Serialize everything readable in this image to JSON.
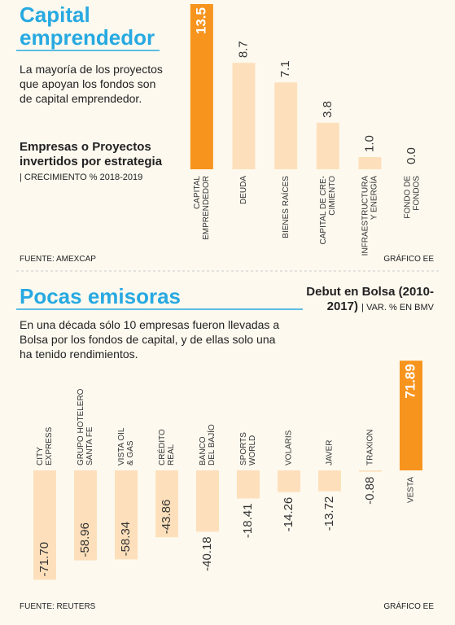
{
  "chart_data": [
    {
      "type": "bar",
      "heading": "Capital emprendedor",
      "description": "La mayoría de los proyectos que apoyan los fondos son de capital emprendedor.",
      "title": "Empresas o Proyectos invertidos por estrategia",
      "title_note": "| CRECIMIENTO % 2018-2019",
      "categories": [
        [
          "CAPITAL",
          "EMPRENDEDOR"
        ],
        [
          "DEUDA"
        ],
        [
          "BIENES RAÍCES"
        ],
        [
          "CAPITAL DE CRE-",
          "CIMIENTO"
        ],
        [
          "INFRAESTRUCTURA",
          "Y ENERGÍA"
        ],
        [
          "FONDO DE",
          "FONDOS"
        ]
      ],
      "values": [
        13.5,
        8.7,
        7.1,
        3.8,
        1.0,
        0.0
      ],
      "value_labels": [
        "13.5",
        "8.7",
        "7.1",
        "3.8",
        "1.0",
        "0.0"
      ],
      "colors": [
        "#f7941d",
        "#fde0bb",
        "#fde0bb",
        "#fde0bb",
        "#fde0bb",
        "#fde0bb"
      ],
      "ylim": [
        0,
        13.5
      ],
      "source": "FUENTE: AMEXCAP",
      "credit": "GRÁFICO EE"
    },
    {
      "type": "bar",
      "heading": "Pocas emisoras",
      "description": "En una década sólo 10 empresas fueron llevadas a Bolsa por los fondos de capital, y de ellas solo una ha tenido rendimientos.",
      "title": "Debut en Bolsa (2010-2017)",
      "title_note": "| VAR. % EN BMV",
      "categories": [
        [
          "CITY",
          "EXPRESS"
        ],
        [
          "GRUPO HOTELERO",
          "SANTA FE"
        ],
        [
          "VISTA OIL",
          "& GAS"
        ],
        [
          "CRÉDITO",
          "REAL"
        ],
        [
          "BANCO",
          "DEL BAJÍO"
        ],
        [
          "SPORTS",
          "WORLD"
        ],
        [
          "VOLARIS"
        ],
        [
          "JAVER"
        ],
        [
          "TRAXION"
        ],
        [
          "VESTA"
        ]
      ],
      "values": [
        -71.7,
        -58.96,
        -58.34,
        -43.86,
        -40.18,
        -18.41,
        -14.26,
        -13.72,
        -0.88,
        71.89
      ],
      "value_labels": [
        "-71.70",
        "-58.96",
        "-58.34",
        "-43.86",
        "-40.18",
        "-18.41",
        "-14.26",
        "-13.72",
        "-0.88",
        "71.89"
      ],
      "colors": [
        "#fde0bb",
        "#fde0bb",
        "#fde0bb",
        "#fde0bb",
        "#fde0bb",
        "#fde0bb",
        "#fde0bb",
        "#fde0bb",
        "#fde0bb",
        "#f7941d"
      ],
      "ylim": [
        -72,
        72
      ],
      "source": "FUENTE: REUTERS",
      "credit": "GRÁFICO EE"
    }
  ]
}
